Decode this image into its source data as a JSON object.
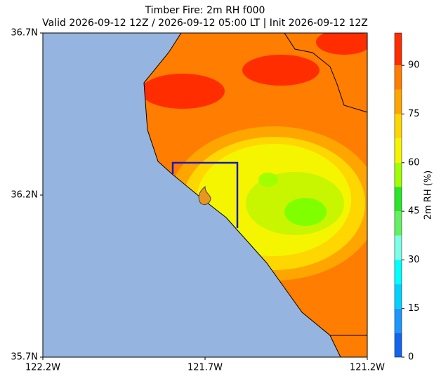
{
  "chart_data": {
    "type": "map",
    "title": "Timber Fire: 2m RH f000",
    "subtitle": "Valid 2026-09-12 12Z / 2026-09-12 05:00 LT | Init 2026-09-12 12Z",
    "xlim": [
      -122.2,
      -121.2
    ],
    "xticks": [
      {
        "value": -122.2,
        "label": "122.2W"
      },
      {
        "value": -121.7,
        "label": "121.7W"
      },
      {
        "value": -121.2,
        "label": "121.2W"
      }
    ],
    "ylim": [
      35.7,
      36.7
    ],
    "yticks": [
      {
        "value": 35.7,
        "label": "35.7N"
      },
      {
        "value": 36.2,
        "label": "36.2N"
      },
      {
        "value": 36.7,
        "label": "36.7N"
      }
    ],
    "colorbar": {
      "label": "2m RH (%)",
      "lim": [
        0,
        100
      ],
      "ticks": [
        0,
        15,
        30,
        45,
        60,
        75,
        90
      ],
      "bounds": [
        0,
        7.5,
        15,
        22.5,
        30,
        37.5,
        45,
        52.5,
        60,
        67.5,
        75,
        82.5,
        90,
        100
      ],
      "colors": [
        "#1464f0",
        "#1e96ff",
        "#00d2ff",
        "#00ffff",
        "#7dffe6",
        "#64f064",
        "#28e628",
        "#a0ff00",
        "#f5f500",
        "#ffd700",
        "#ffa500",
        "#ff7d00",
        "#ff2d00"
      ]
    }
  }
}
